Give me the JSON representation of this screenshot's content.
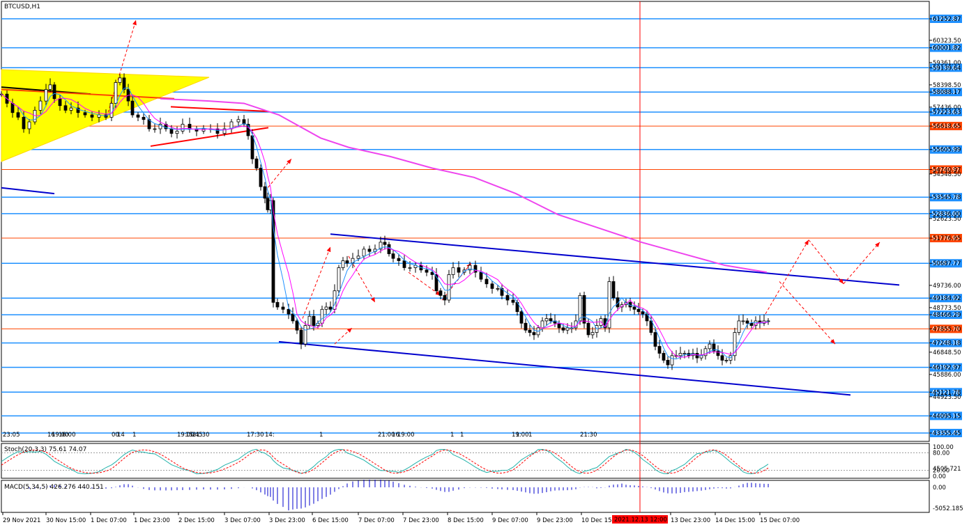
{
  "chart_data": {
    "type": "candlestick",
    "title": "BTCUSD,H1",
    "symbol": "BTCUSD",
    "timeframe": "H1",
    "ylim": [
      42800,
      62000
    ],
    "price_ticks": [
      "61252.87",
      "60323.50",
      "60001.82",
      "59361.00",
      "59139.64",
      "58398.50",
      "58088.17",
      "57436.00",
      "57223.63",
      "56618.65",
      "55605.99",
      "54740.97",
      "54548.50",
      "53545.78",
      "52836.00",
      "52623.50",
      "51776.95",
      "50687.77",
      "49736.00",
      "49184.92",
      "48773.50",
      "48466.29",
      "47855.70",
      "47248.18",
      "46848.50",
      "46192.97",
      "45886.00",
      "45121.78",
      "44923.50",
      "44095.15",
      "43355.45"
    ],
    "levels": [
      {
        "price": 61252.87,
        "label": "61252.87",
        "color": "#1e90ff"
      },
      {
        "price": 60001.82,
        "label": "60001.82",
        "color": "#1e90ff"
      },
      {
        "price": 59139.64,
        "label": "59139.64",
        "color": "#1e90ff"
      },
      {
        "price": 58088.17,
        "label": "58088.17",
        "color": "#1e90ff"
      },
      {
        "price": 57223.63,
        "label": "57223.63",
        "color": "#1e90ff"
      },
      {
        "price": 56618.65,
        "label": "56618.65",
        "color": "#ff4500"
      },
      {
        "price": 55605.99,
        "label": "55605.99",
        "color": "#1e90ff"
      },
      {
        "price": 54740.97,
        "label": "54740.97",
        "color": "#ff4500"
      },
      {
        "price": 53545.78,
        "label": "53545.78",
        "color": "#1e90ff"
      },
      {
        "price": 52836.0,
        "label": "52836.00",
        "color": "#1e90ff"
      },
      {
        "price": 51776.95,
        "label": "51776.95",
        "color": "#ff4500"
      },
      {
        "price": 50687.77,
        "label": "50687.77",
        "color": "#1e90ff"
      },
      {
        "price": 49184.92,
        "label": "49184.92",
        "color": "#1e90ff"
      },
      {
        "price": 48466.29,
        "label": "48466.29",
        "color": "#1e90ff"
      },
      {
        "price": 47855.7,
        "label": "47855.70",
        "color": "#ff4500"
      },
      {
        "price": 47248.18,
        "label": "47248.18",
        "color": "#1e90ff"
      },
      {
        "price": 46192.97,
        "label": "46192.97",
        "color": "#1e90ff"
      },
      {
        "price": 45121.78,
        "label": "45121.78",
        "color": "#1e90ff"
      },
      {
        "price": 44095.15,
        "label": "44095.15",
        "color": "#1e90ff"
      },
      {
        "price": 43355.45,
        "label": "43355.45",
        "color": "#1e90ff"
      }
    ],
    "time_labels": [
      "29 Nov 2021",
      "30 Nov 15:00",
      "1 Dec 07:00",
      "1 Dec 23:00",
      "2 Dec 15:00",
      "3 Dec 07:00",
      "3 Dec 23:00",
      "6 Dec 15:00",
      "7 Dec 07:00",
      "7 Dec 23:00",
      "8 Dec 15:00",
      "9 Dec 07:00",
      "9 Dec 23:00",
      "10 Dec 15:00",
      "13 Dec 23:00",
      "14 Dec 15:00",
      "15 Dec 07:00"
    ],
    "crosshair_time": "2021.12.13 12:00",
    "period_separator_labels": [
      "23:05",
      "16",
      "19:00",
      "16:00",
      "00",
      "14",
      "1",
      "19:00",
      "15:45",
      "21:30",
      "17:30",
      "14:",
      "1",
      "21:00",
      "16",
      "19:00",
      "1",
      "1",
      "19:00",
      "1",
      "1",
      "21:30"
    ],
    "close_path": [
      [
        0,
        58000
      ],
      [
        8,
        57600
      ],
      [
        16,
        57200
      ],
      [
        24,
        57000
      ],
      [
        32,
        56500
      ],
      [
        40,
        56800
      ],
      [
        48,
        57300
      ],
      [
        56,
        57700
      ],
      [
        64,
        58200
      ],
      [
        70,
        58400
      ],
      [
        76,
        57800
      ],
      [
        84,
        57500
      ],
      [
        92,
        57300
      ],
      [
        100,
        57400
      ],
      [
        110,
        57200
      ],
      [
        120,
        57100
      ],
      [
        130,
        57000
      ],
      [
        140,
        57100
      ],
      [
        150,
        57000
      ],
      [
        158,
        57600
      ],
      [
        164,
        58500
      ],
      [
        170,
        58700
      ],
      [
        176,
        58200
      ],
      [
        182,
        57700
      ],
      [
        188,
        57100
      ],
      [
        196,
        57000
      ],
      [
        204,
        56900
      ],
      [
        212,
        56500
      ],
      [
        220,
        56500
      ],
      [
        228,
        56700
      ],
      [
        236,
        56500
      ],
      [
        244,
        56300
      ],
      [
        252,
        56400
      ],
      [
        260,
        56700
      ],
      [
        270,
        56500
      ],
      [
        280,
        56400
      ],
      [
        290,
        56500
      ],
      [
        300,
        56500
      ],
      [
        310,
        56300
      ],
      [
        320,
        56500
      ],
      [
        330,
        56800
      ],
      [
        340,
        56900
      ],
      [
        348,
        56700
      ],
      [
        354,
        56200
      ],
      [
        360,
        55200
      ],
      [
        366,
        54800
      ],
      [
        372,
        54000
      ],
      [
        378,
        53500
      ],
      [
        382,
        53000
      ],
      [
        386,
        53400
      ],
      [
        390,
        49000
      ],
      [
        396,
        48800
      ],
      [
        404,
        48700
      ],
      [
        412,
        48500
      ],
      [
        418,
        48200
      ],
      [
        424,
        47800
      ],
      [
        430,
        47200
      ],
      [
        436,
        48000
      ],
      [
        442,
        48400
      ],
      [
        448,
        48000
      ],
      [
        454,
        48100
      ],
      [
        460,
        48700
      ],
      [
        466,
        48800
      ],
      [
        472,
        48700
      ],
      [
        478,
        49500
      ],
      [
        484,
        50500
      ],
      [
        490,
        50800
      ],
      [
        496,
        50700
      ],
      [
        504,
        50900
      ],
      [
        512,
        51000
      ],
      [
        520,
        51300
      ],
      [
        528,
        51200
      ],
      [
        536,
        51300
      ],
      [
        544,
        51600
      ],
      [
        550,
        51500
      ],
      [
        556,
        51100
      ],
      [
        562,
        50900
      ],
      [
        570,
        50800
      ],
      [
        578,
        50500
      ],
      [
        586,
        50500
      ],
      [
        594,
        50600
      ],
      [
        602,
        50400
      ],
      [
        610,
        50300
      ],
      [
        618,
        50200
      ],
      [
        624,
        49500
      ],
      [
        630,
        49300
      ],
      [
        636,
        49100
      ],
      [
        642,
        50200
      ],
      [
        648,
        50500
      ],
      [
        656,
        50300
      ],
      [
        664,
        50400
      ],
      [
        672,
        50600
      ],
      [
        680,
        50300
      ],
      [
        688,
        50000
      ],
      [
        696,
        49800
      ],
      [
        704,
        49600
      ],
      [
        712,
        49600
      ],
      [
        718,
        49300
      ],
      [
        726,
        49100
      ],
      [
        734,
        49000
      ],
      [
        740,
        48600
      ],
      [
        746,
        48100
      ],
      [
        752,
        47800
      ],
      [
        758,
        47700
      ],
      [
        764,
        47600
      ],
      [
        770,
        47900
      ],
      [
        776,
        48200
      ],
      [
        782,
        48300
      ],
      [
        788,
        48200
      ],
      [
        794,
        48100
      ],
      [
        800,
        47900
      ],
      [
        806,
        47800
      ],
      [
        812,
        47900
      ],
      [
        818,
        47900
      ],
      [
        824,
        48200
      ],
      [
        830,
        49300
      ],
      [
        836,
        48100
      ],
      [
        842,
        47600
      ],
      [
        848,
        47700
      ],
      [
        854,
        48000
      ],
      [
        860,
        48300
      ],
      [
        866,
        47900
      ],
      [
        872,
        49900
      ],
      [
        878,
        49200
      ],
      [
        884,
        48800
      ],
      [
        890,
        48900
      ],
      [
        896,
        49000
      ],
      [
        902,
        48800
      ],
      [
        908,
        48700
      ],
      [
        914,
        48600
      ],
      [
        920,
        48500
      ],
      [
        926,
        48200
      ],
      [
        932,
        47700
      ],
      [
        938,
        47100
      ],
      [
        944,
        46800
      ],
      [
        950,
        46500
      ],
      [
        956,
        46300
      ],
      [
        962,
        46700
      ],
      [
        968,
        46700
      ],
      [
        974,
        46800
      ],
      [
        980,
        46800
      ],
      [
        986,
        46700
      ],
      [
        992,
        46800
      ],
      [
        998,
        46600
      ],
      [
        1004,
        46700
      ],
      [
        1010,
        47000
      ],
      [
        1016,
        47200
      ],
      [
        1022,
        46900
      ],
      [
        1028,
        46700
      ],
      [
        1034,
        46500
      ],
      [
        1040,
        46500
      ],
      [
        1046,
        46700
      ],
      [
        1052,
        47700
      ],
      [
        1058,
        48200
      ],
      [
        1064,
        48200
      ],
      [
        1070,
        48100
      ],
      [
        1076,
        48000
      ],
      [
        1082,
        48200
      ],
      [
        1088,
        48100
      ],
      [
        1094,
        48200
      ],
      [
        1100,
        48200
      ]
    ],
    "ma_slow": [
      [
        230,
        57800
      ],
      [
        300,
        57700
      ],
      [
        350,
        57600
      ],
      [
        400,
        57100
      ],
      [
        460,
        56100
      ],
      [
        500,
        55700
      ],
      [
        560,
        55300
      ],
      [
        620,
        54800
      ],
      [
        680,
        54400
      ],
      [
        740,
        53700
      ],
      [
        800,
        52800
      ],
      [
        860,
        52200
      ],
      [
        920,
        51600
      ],
      [
        980,
        51100
      ],
      [
        1040,
        50600
      ],
      [
        1100,
        50300
      ]
    ],
    "channel_upper": [
      [
        474,
        51950
      ],
      [
        1290,
        49750
      ]
    ],
    "channel_lower": [
      [
        400,
        47300
      ],
      [
        1220,
        45000
      ]
    ],
    "indicators": {
      "stoch_label": "Stoch(20,3,3) 75.61 74.07",
      "stoch_ticks": [
        "100.00",
        "80.00",
        "20.00",
        "0.00"
      ],
      "macd_label": "MACD(5,34,5) 426.276 440.151",
      "macd_ticks": [
        "4505.721",
        "0.00",
        "-5052.185"
      ]
    }
  }
}
